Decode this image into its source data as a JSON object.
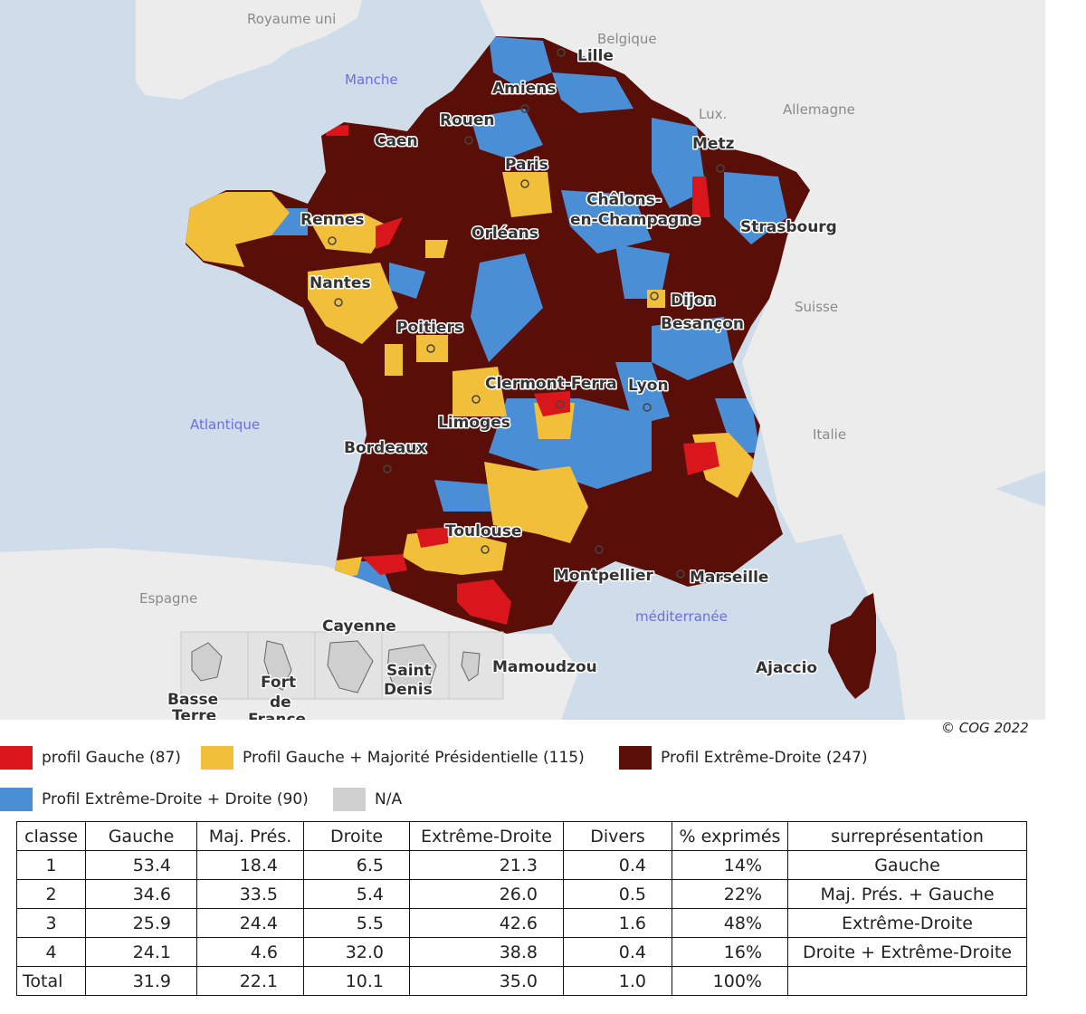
{
  "map": {
    "cities": {
      "lille": "Lille",
      "amiens": "Amiens",
      "rouen": "Rouen",
      "caen": "Caen",
      "paris": "Paris",
      "metz": "Metz",
      "chalons_1": "Châlons-",
      "chalons_2": "en-Champagne",
      "strasbourg": "Strasbourg",
      "rennes": "Rennes",
      "orleans": "Orléans",
      "nantes": "Nantes",
      "dijon": "Dijon",
      "besancon": "Besançon",
      "poitiers": "Poitiers",
      "clermont": "Clermont-Ferra",
      "lyon": "Lyon",
      "limoges": "Limoges",
      "bordeaux": "Bordeaux",
      "toulouse": "Toulouse",
      "montpellier": "Montpellier",
      "marseille": "Marseille",
      "ajaccio": "Ajaccio",
      "cayenne": "Cayenne",
      "mamoudzou": "Mamoudzou",
      "basse_terre_1": "Basse",
      "basse_terre_2": "Terre",
      "fort_1": "Fort",
      "fort_2": "de",
      "fort_3": "France",
      "saint_1": "Saint",
      "saint_2": "Denis"
    },
    "countries": {
      "uk": "Royaume uni",
      "belgium": "Belgique",
      "lux": "Lux.",
      "germany": "Allemagne",
      "switzerland": "Suisse",
      "italy": "Italie",
      "spain": "Espagne"
    },
    "seas": {
      "manche": "Manche",
      "atlantique": "Atlantique",
      "med": "méditerranée"
    },
    "colors": {
      "gauche": "#d9161c",
      "gauche_maj": "#f2bf3a",
      "extreme_droite": "#5a0e08",
      "extreme_droite_droite": "#4a8fd6",
      "na": "#cfcfcf",
      "land": "#ececec",
      "water": "#cfdcea"
    }
  },
  "copyright": "© COG 2022",
  "legend": [
    {
      "label": "profil Gauche (87)",
      "color": "#d9161c"
    },
    {
      "label": "Profil Gauche + Majorité Présidentielle (115)",
      "color": "#f2bf3a"
    },
    {
      "label": "Profil Extrême-Droite (247)",
      "color": "#5a0e08"
    },
    {
      "label": "Profil Extrême-Droite + Droite (90)",
      "color": "#4a8fd6"
    },
    {
      "label": "N/A",
      "color": "#cfcfcf"
    }
  ],
  "table": {
    "headers": [
      "classe",
      "Gauche",
      "Maj. Prés.",
      "Droite",
      "Extrême-Droite",
      "Divers",
      "% exprimés",
      "surreprésentation"
    ],
    "rows": [
      [
        "1",
        "53.4",
        "18.4",
        "6.5",
        "21.3",
        "0.4",
        "14%",
        "Gauche"
      ],
      [
        "2",
        "34.6",
        "33.5",
        "5.4",
        "26.0",
        "0.5",
        "22%",
        "Maj. Prés. + Gauche"
      ],
      [
        "3",
        "25.9",
        "24.4",
        "5.5",
        "42.6",
        "1.6",
        "48%",
        "Extrême-Droite"
      ],
      [
        "4",
        "24.1",
        "4.6",
        "32.0",
        "38.8",
        "0.4",
        "16%",
        "Droite + Extrême-Droite"
      ],
      [
        "Total",
        "31.9",
        "22.1",
        "10.1",
        "35.0",
        "1.0",
        "100%",
        ""
      ]
    ]
  }
}
